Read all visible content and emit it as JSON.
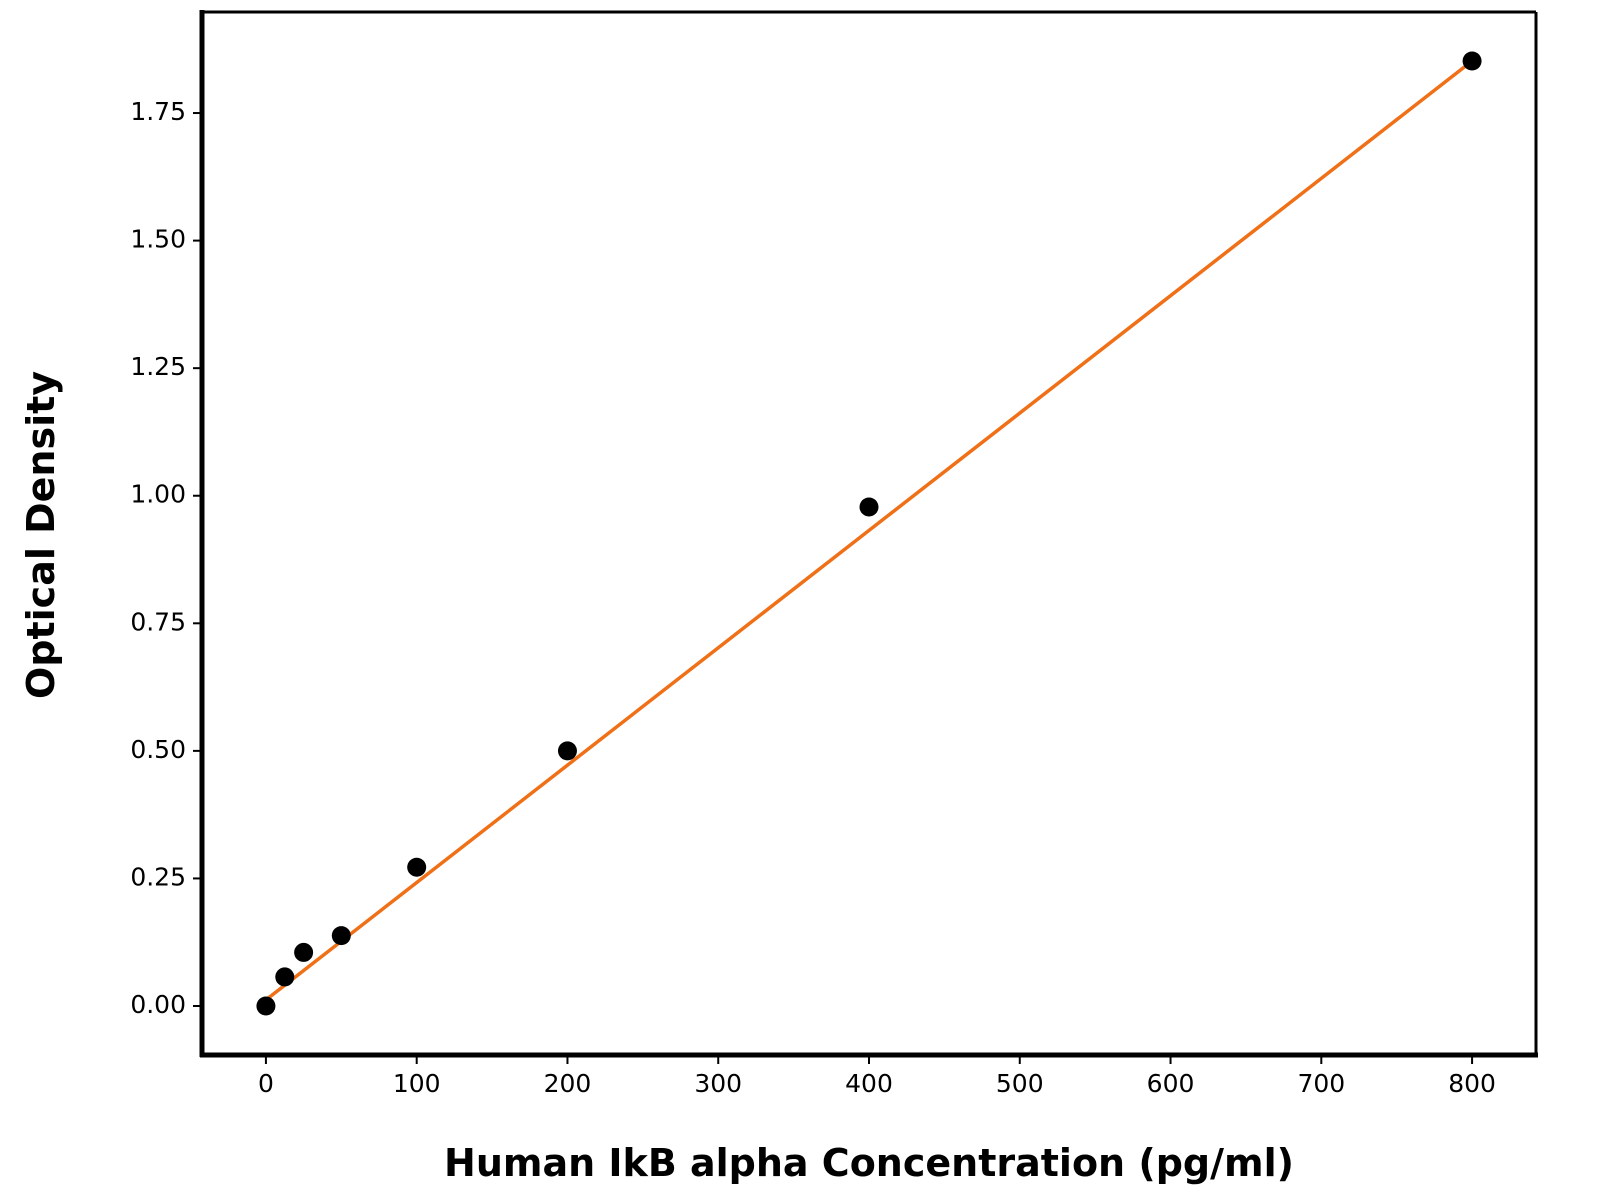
{
  "chart_data": {
    "type": "scatter",
    "x_label": "Human IkB alpha Concentration (pg/ml)",
    "y_label": "Optical Density",
    "series": [
      {
        "x": [
          0,
          12.5,
          25,
          50,
          100,
          200,
          400,
          800
        ],
        "values": [
          0.0,
          0.057,
          0.105,
          0.138,
          0.272,
          0.5,
          0.978,
          1.852
        ],
        "color": "#000000"
      }
    ],
    "fit": {
      "x": [
        0,
        800
      ],
      "values": [
        0.012,
        1.852
      ],
      "color": "#f07018"
    },
    "xlim": [
      -42.4,
      842.4
    ],
    "ylim": [
      -0.096,
      1.948
    ],
    "xticks": [
      0,
      100,
      200,
      300,
      400,
      500,
      600,
      700,
      800
    ],
    "yticks": [
      {
        "value": 0,
        "label": "0.00"
      },
      {
        "value": 0.25,
        "label": "0.25"
      },
      {
        "value": 0.5,
        "label": "0.50"
      },
      {
        "value": 0.75,
        "label": "0.75"
      },
      {
        "value": 1,
        "label": "1.00"
      },
      {
        "value": 1.25,
        "label": "1.25"
      },
      {
        "value": 1.5,
        "label": "1.50"
      },
      {
        "value": 1.75,
        "label": "1.75"
      }
    ],
    "grid": false
  }
}
